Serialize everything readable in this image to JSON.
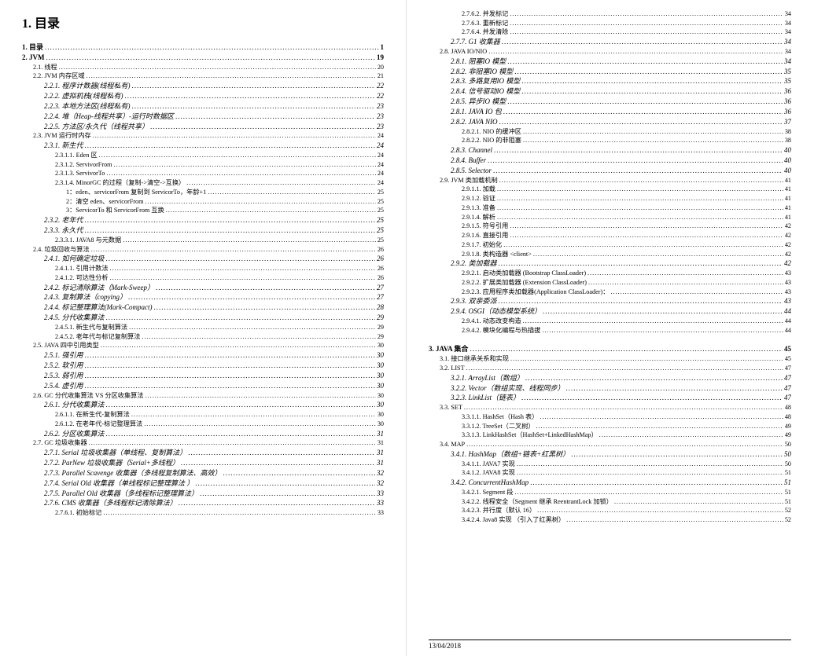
{
  "document": {
    "main_title": "1. 目录",
    "footer_date": "13/04/2018",
    "font_family": "SimSun, Songti SC, serif",
    "base_fontsize_pt": 9,
    "title_fontsize_pt": 16,
    "background_color": "#ffffff",
    "text_color": "#000000",
    "divider_color": "#e0e0e0"
  },
  "left_column": [
    {
      "num": "1.",
      "label": "目录",
      "page": "1",
      "indent": 0,
      "bold": true
    },
    {
      "num": "2.",
      "label": "JVM",
      "page": "19",
      "indent": 0,
      "bold": true
    },
    {
      "num": "2.1.",
      "label": "线程",
      "page": "20",
      "indent": 1,
      "small": true
    },
    {
      "num": "2.2.",
      "label": "JVM 内存区域",
      "page": "21",
      "indent": 1,
      "small": true
    },
    {
      "num": "2.2.1.",
      "label": "程序计数器(线程私有)",
      "page": "22",
      "indent": 2,
      "italic": true
    },
    {
      "num": "2.2.2.",
      "label": "虚拟机栈(线程私有)",
      "page": "22",
      "indent": 2,
      "italic": true
    },
    {
      "num": "2.2.3.",
      "label": "本地方法区(线程私有)",
      "page": "23",
      "indent": 2,
      "italic": true
    },
    {
      "num": "2.2.4.",
      "label": "堆（Heap-线程共享）-运行时数据区",
      "page": "23",
      "indent": 2,
      "italic": true
    },
    {
      "num": "2.2.5.",
      "label": "方法区/永久代（线程共享）",
      "page": "23",
      "indent": 2,
      "italic": true
    },
    {
      "num": "2.3.",
      "label": "JVM 运行时内存",
      "page": "24",
      "indent": 1,
      "small": true
    },
    {
      "num": "2.3.1.",
      "label": "新生代",
      "page": "24",
      "indent": 2,
      "italic": true
    },
    {
      "num": "2.3.1.1.",
      "label": "Eden 区",
      "page": "24",
      "indent": 3,
      "small": true
    },
    {
      "num": "2.3.1.2.",
      "label": "ServivorFrom",
      "page": "24",
      "indent": 3,
      "small": true
    },
    {
      "num": "2.3.1.3.",
      "label": "ServivorTo",
      "page": "24",
      "indent": 3,
      "small": true
    },
    {
      "num": "2.3.1.4.",
      "label": "MinorGC 的过程（复制->清空->互换）",
      "page": "24",
      "indent": 3,
      "small": true
    },
    {
      "num": "",
      "label": "1：eden、servicorFrom 复制到 ServicorTo，年龄+1",
      "page": "25",
      "indent": 4,
      "small": true
    },
    {
      "num": "",
      "label": "2：清空 eden、servicorFrom",
      "page": "25",
      "indent": 4,
      "small": true
    },
    {
      "num": "",
      "label": "3：ServicorTo 和 ServicorFrom 互换",
      "page": "25",
      "indent": 4,
      "small": true
    },
    {
      "num": "2.3.2.",
      "label": "老年代",
      "page": "25",
      "indent": 2,
      "italic": true
    },
    {
      "num": "2.3.3.",
      "label": "永久代",
      "page": "25",
      "indent": 2,
      "italic": true
    },
    {
      "num": "2.3.3.1.",
      "label": "JAVA8 与元数据",
      "page": "25",
      "indent": 3,
      "small": true
    },
    {
      "num": "2.4.",
      "label": "垃圾回收与算法",
      "page": "26",
      "indent": 1,
      "small": true
    },
    {
      "num": "2.4.1.",
      "label": "如何确定垃圾",
      "page": "26",
      "indent": 2,
      "italic": true
    },
    {
      "num": "2.4.1.1.",
      "label": "引用计数法",
      "page": "26",
      "indent": 3,
      "small": true
    },
    {
      "num": "2.4.1.2.",
      "label": "可达性分析",
      "page": "26",
      "indent": 3,
      "small": true
    },
    {
      "num": "2.4.2.",
      "label": "标记清除算法（Mark-Sweep）",
      "page": "27",
      "indent": 2,
      "italic": true
    },
    {
      "num": "2.4.3.",
      "label": "复制算法（copying）",
      "page": "27",
      "indent": 2,
      "italic": true
    },
    {
      "num": "2.4.4.",
      "label": "标记整理算法(Mark-Compact)",
      "page": "28",
      "indent": 2,
      "italic": true
    },
    {
      "num": "2.4.5.",
      "label": "分代收集算法",
      "page": "29",
      "indent": 2,
      "italic": true
    },
    {
      "num": "2.4.5.1.",
      "label": "新生代与复制算法",
      "page": "29",
      "indent": 3,
      "small": true
    },
    {
      "num": "2.4.5.2.",
      "label": "老年代与标记复制算法",
      "page": "29",
      "indent": 3,
      "small": true
    },
    {
      "num": "2.5.",
      "label": "JAVA 四中引用类型",
      "page": "30",
      "indent": 1,
      "small": true
    },
    {
      "num": "2.5.1.",
      "label": "强引用",
      "page": "30",
      "indent": 2,
      "italic": true
    },
    {
      "num": "2.5.2.",
      "label": "软引用",
      "page": "30",
      "indent": 2,
      "italic": true
    },
    {
      "num": "2.5.3.",
      "label": "弱引用",
      "page": "30",
      "indent": 2,
      "italic": true
    },
    {
      "num": "2.5.4.",
      "label": "虚引用",
      "page": "30",
      "indent": 2,
      "italic": true
    },
    {
      "num": "2.6.",
      "label": "GC 分代收集算法 VS 分区收集算法",
      "page": "30",
      "indent": 1,
      "small": true
    },
    {
      "num": "2.6.1.",
      "label": "分代收集算法",
      "page": "30",
      "indent": 2,
      "italic": true
    },
    {
      "num": "2.6.1.1.",
      "label": "在新生代-复制算法",
      "page": "30",
      "indent": 3,
      "small": true
    },
    {
      "num": "2.6.1.2.",
      "label": "在老年代-标记整理算法",
      "page": "30",
      "indent": 3,
      "small": true
    },
    {
      "num": "2.6.2.",
      "label": "分区收集算法",
      "page": "31",
      "indent": 2,
      "italic": true
    },
    {
      "num": "2.7.",
      "label": "GC 垃圾收集器",
      "page": "31",
      "indent": 1,
      "small": true
    },
    {
      "num": "2.7.1.",
      "label": "Serial 垃圾收集器（单线程、复制算法）",
      "page": "31",
      "indent": 2,
      "italic": true
    },
    {
      "num": "2.7.2.",
      "label": "ParNew 垃圾收集器（Serial+多线程）",
      "page": "31",
      "indent": 2,
      "italic": true
    },
    {
      "num": "2.7.3.",
      "label": "Parallel Scavenge 收集器（多线程复制算法、高效）",
      "page": "32",
      "indent": 2,
      "italic": true
    },
    {
      "num": "2.7.4.",
      "label": "Serial Old 收集器（单线程标记整理算法 ）",
      "page": "32",
      "indent": 2,
      "italic": true
    },
    {
      "num": "2.7.5.",
      "label": "Parallel Old 收集器（多线程标记整理算法）",
      "page": "33",
      "indent": 2,
      "italic": true
    },
    {
      "num": "2.7.6.",
      "label": "CMS 收集器（多线程标记清除算法）",
      "page": "33",
      "indent": 2,
      "italic": true
    },
    {
      "num": "2.7.6.1.",
      "label": "初始标记",
      "page": "33",
      "indent": 3,
      "small": true
    }
  ],
  "right_column": [
    {
      "num": "2.7.6.2.",
      "label": "并发标记",
      "page": "34",
      "indent": 3,
      "small": true
    },
    {
      "num": "2.7.6.3.",
      "label": "重新标记",
      "page": "34",
      "indent": 3,
      "small": true
    },
    {
      "num": "2.7.6.4.",
      "label": "并发清除",
      "page": "34",
      "indent": 3,
      "small": true
    },
    {
      "num": "2.7.7.",
      "label": "G1 收集器",
      "page": "34",
      "indent": 2,
      "italic": true
    },
    {
      "num": "2.8.",
      "label": "JAVA IO/NIO",
      "page": "34",
      "indent": 1,
      "small": true
    },
    {
      "num": "2.8.1.",
      "label": "阻塞IO 模型",
      "page": "34",
      "indent": 2,
      "italic": true
    },
    {
      "num": "2.8.2.",
      "label": "非阻塞IO 模型",
      "page": "35",
      "indent": 2,
      "italic": true
    },
    {
      "num": "2.8.3.",
      "label": "多路复用IO 模型",
      "page": "35",
      "indent": 2,
      "italic": true
    },
    {
      "num": "2.8.4.",
      "label": "信号驱动IO 模型",
      "page": "36",
      "indent": 2,
      "italic": true
    },
    {
      "num": "2.8.5.",
      "label": "异步IO 模型",
      "page": "36",
      "indent": 2,
      "italic": true
    },
    {
      "num": "2.8.1.",
      "label": "JAVA IO 包",
      "page": "36",
      "indent": 2,
      "italic": true
    },
    {
      "num": "2.8.2.",
      "label": "JAVA NIO",
      "page": "37",
      "indent": 2,
      "italic": true
    },
    {
      "num": "2.8.2.1.",
      "label": "NIO 的缓冲区",
      "page": "38",
      "indent": 3,
      "small": true
    },
    {
      "num": "2.8.2.2.",
      "label": "NIO 的非阻塞",
      "page": "38",
      "indent": 3,
      "small": true
    },
    {
      "num": "2.8.3.",
      "label": "Channel",
      "page": "40",
      "indent": 2,
      "italic": true
    },
    {
      "num": "2.8.4.",
      "label": "Buffer",
      "page": "40",
      "indent": 2,
      "italic": true
    },
    {
      "num": "2.8.5.",
      "label": "Selector",
      "page": "40",
      "indent": 2,
      "italic": true
    },
    {
      "num": "2.9.",
      "label": "JVM 类加载机制",
      "page": "41",
      "indent": 1,
      "small": true
    },
    {
      "num": "2.9.1.1.",
      "label": "加载",
      "page": "41",
      "indent": 3,
      "small": true
    },
    {
      "num": "2.9.1.2.",
      "label": "验证",
      "page": "41",
      "indent": 3,
      "small": true
    },
    {
      "num": "2.9.1.3.",
      "label": "准备",
      "page": "41",
      "indent": 3,
      "small": true
    },
    {
      "num": "2.9.1.4.",
      "label": "解析",
      "page": "41",
      "indent": 3,
      "small": true
    },
    {
      "num": "2.9.1.5.",
      "label": "符号引用",
      "page": "42",
      "indent": 3,
      "small": true
    },
    {
      "num": "2.9.1.6.",
      "label": "直接引用",
      "page": "42",
      "indent": 3,
      "small": true
    },
    {
      "num": "2.9.1.7.",
      "label": "初始化",
      "page": "42",
      "indent": 3,
      "small": true
    },
    {
      "num": "2.9.1.8.",
      "label": "类构造器 <client>",
      "page": "42",
      "indent": 3,
      "small": true
    },
    {
      "num": "2.9.2.",
      "label": "类加载器",
      "page": "42",
      "indent": 2,
      "italic": true
    },
    {
      "num": "2.9.2.1.",
      "label": "启动类加载器 (Bootstrap ClassLoader)",
      "page": "43",
      "indent": 3,
      "small": true
    },
    {
      "num": "2.9.2.2.",
      "label": "扩展类加载器 (Extension ClassLoader)",
      "page": "43",
      "indent": 3,
      "small": true
    },
    {
      "num": "2.9.2.3.",
      "label": "应用程序类加载器(Application ClassLoader)：",
      "page": "43",
      "indent": 3,
      "small": true
    },
    {
      "num": "2.9.3.",
      "label": "双亲委派",
      "page": "43",
      "indent": 2,
      "italic": true
    },
    {
      "num": "2.9.4.",
      "label": "OSGI（动态模型系统）",
      "page": "44",
      "indent": 2,
      "italic": true
    },
    {
      "num": "2.9.4.1.",
      "label": "动态改变构造",
      "page": "44",
      "indent": 3,
      "small": true
    },
    {
      "num": "2.9.4.2.",
      "label": "模块化编程与热插拔",
      "page": "44",
      "indent": 3,
      "small": true
    },
    {
      "num": "3.",
      "label": "JAVA 集合",
      "page": "45",
      "indent": 0,
      "bold": true,
      "gap_before": true
    },
    {
      "num": "3.1.",
      "label": "接口继承关系和实现",
      "page": "45",
      "indent": 1,
      "small": true
    },
    {
      "num": "3.2.",
      "label": "LIST",
      "page": "47",
      "indent": 1,
      "small": true
    },
    {
      "num": "3.2.1.",
      "label": "ArrayList（数组）",
      "page": "47",
      "indent": 2,
      "italic": true
    },
    {
      "num": "3.2.2.",
      "label": "Vector（数组实现、线程同步）",
      "page": "47",
      "indent": 2,
      "italic": true
    },
    {
      "num": "3.2.3.",
      "label": "LinkList（链表）",
      "page": "47",
      "indent": 2,
      "italic": true
    },
    {
      "num": "3.3.",
      "label": "SET",
      "page": "48",
      "indent": 1,
      "small": true
    },
    {
      "num": "3.3.1.1.",
      "label": "HashSet（Hash 表）",
      "page": "48",
      "indent": 3,
      "small": true
    },
    {
      "num": "3.3.1.2.",
      "label": "TreeSet（二叉树）",
      "page": "49",
      "indent": 3,
      "small": true
    },
    {
      "num": "3.3.1.3.",
      "label": "LinkHashSet（HashSet+LinkedHashMap）",
      "page": "49",
      "indent": 3,
      "small": true
    },
    {
      "num": "3.4.",
      "label": "MAP",
      "page": "50",
      "indent": 1,
      "small": true
    },
    {
      "num": "3.4.1.",
      "label": "HashMap（数组+链表+红黑树）",
      "page": "50",
      "indent": 2,
      "italic": true
    },
    {
      "num": "3.4.1.1.",
      "label": "JAVA7 实现",
      "page": "50",
      "indent": 3,
      "small": true
    },
    {
      "num": "3.4.1.2.",
      "label": "JAVA8 实现",
      "page": "51",
      "indent": 3,
      "small": true
    },
    {
      "num": "3.4.2.",
      "label": "ConcurrentHashMap",
      "page": "51",
      "indent": 2,
      "italic": true
    },
    {
      "num": "3.4.2.1.",
      "label": "Segment 段",
      "page": "51",
      "indent": 3,
      "small": true
    },
    {
      "num": "3.4.2.2.",
      "label": "线程安全（Segment 继承 ReentrantLock 加锁）",
      "page": "51",
      "indent": 3,
      "small": true
    },
    {
      "num": "3.4.2.3.",
      "label": "并行度（默认 16）",
      "page": "52",
      "indent": 3,
      "small": true
    },
    {
      "num": "3.4.2.4.",
      "label": "Java8 实现 （引入了红黑树）",
      "page": "52",
      "indent": 3,
      "small": true
    }
  ]
}
